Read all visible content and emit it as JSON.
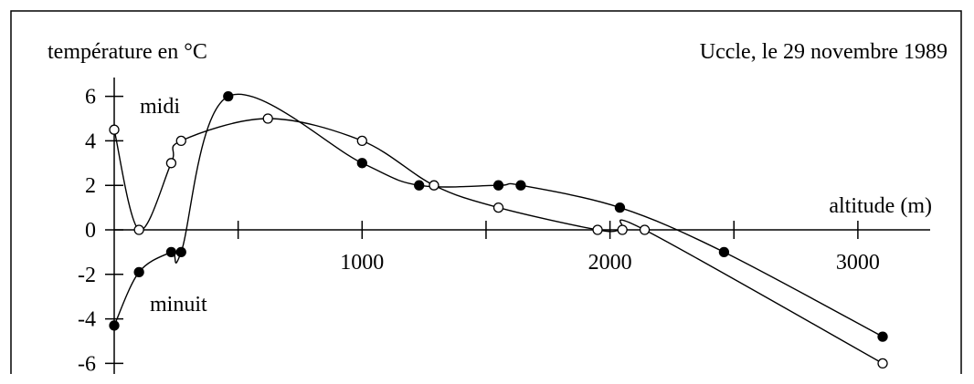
{
  "chart_data": {
    "type": "line",
    "ylabel": "température en °C",
    "xlabel": "altitude (m)",
    "annotation": "Uccle, le 29 novembre 1989",
    "xlim": [
      0,
      3200
    ],
    "ylim": [
      -6.5,
      7
    ],
    "x_ticks": [
      1000,
      2000,
      3000
    ],
    "y_ticks": [
      6,
      4,
      2,
      0,
      -2,
      -4,
      -6
    ],
    "grid": false,
    "series": [
      {
        "name": "midi",
        "marker": "filled",
        "x": [
          0,
          100,
          230,
          270,
          460,
          1000,
          1230,
          1550,
          1640,
          2040,
          2460,
          3100
        ],
        "y": [
          -4.3,
          -1.9,
          -1.0,
          -1.0,
          6.0,
          3.0,
          2.0,
          2.0,
          2.0,
          1.0,
          -1.0,
          -4.8
        ]
      },
      {
        "name": "minuit",
        "marker": "open",
        "x": [
          0,
          100,
          230,
          270,
          620,
          1000,
          1290,
          1550,
          1950,
          2050,
          2140,
          3100
        ],
        "y": [
          4.5,
          0.0,
          3.0,
          4.0,
          5.0,
          4.0,
          2.0,
          1.0,
          0.0,
          0.0,
          0.0,
          -6.0
        ]
      }
    ],
    "series_labels": [
      "midi",
      "minuit"
    ]
  }
}
